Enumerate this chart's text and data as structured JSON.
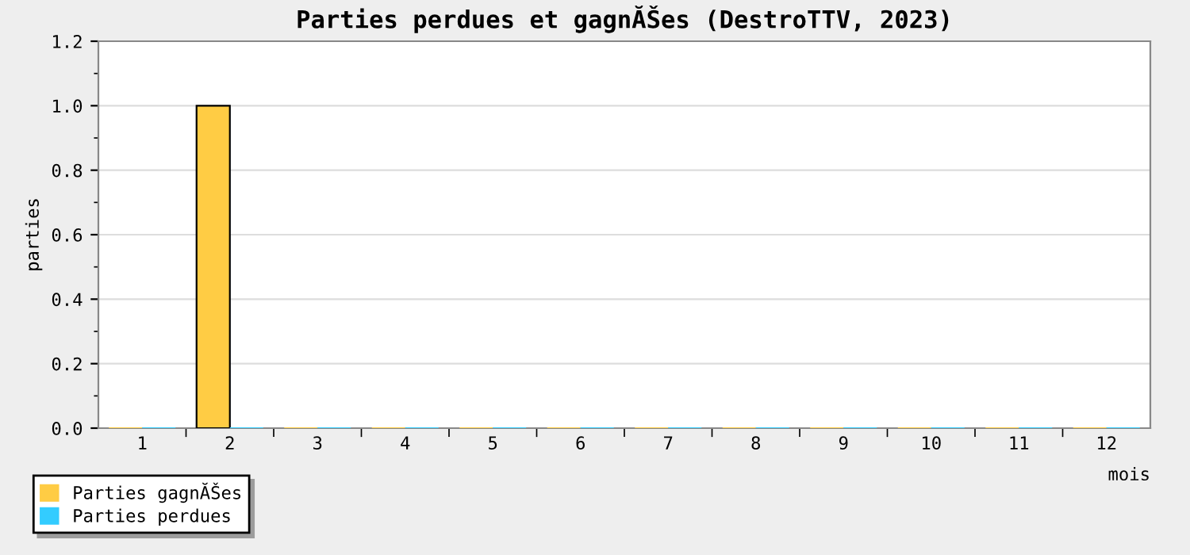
{
  "chart_data": {
    "type": "bar",
    "title": "Parties perdues et gagnĂŠes (DestroTTV, 2023)",
    "xlabel": "mois",
    "ylabel": "parties",
    "categories": [
      "1",
      "2",
      "3",
      "4",
      "5",
      "6",
      "7",
      "8",
      "9",
      "10",
      "11",
      "12"
    ],
    "series": [
      {
        "name": "Parties gagnĂŠes",
        "color": "#ffcc44",
        "values": [
          0,
          1,
          0,
          0,
          0,
          0,
          0,
          0,
          0,
          0,
          0,
          0
        ]
      },
      {
        "name": "Parties perdues",
        "color": "#33ccff",
        "values": [
          0,
          0,
          0,
          0,
          0,
          0,
          0,
          0,
          0,
          0,
          0,
          0
        ]
      }
    ],
    "ylim": [
      0,
      1.2
    ],
    "yticks": [
      {
        "value": 0,
        "label": "0.0"
      },
      {
        "value": 0.2,
        "label": "0.2"
      },
      {
        "value": 0.4,
        "label": "0.4"
      },
      {
        "value": 0.6,
        "label": "0.6"
      },
      {
        "value": 0.8,
        "label": "0.8"
      },
      {
        "value": 1.0,
        "label": "1.0"
      },
      {
        "value": 1.2,
        "label": "1.2"
      }
    ],
    "grid": "y",
    "legend": "bottom left"
  }
}
